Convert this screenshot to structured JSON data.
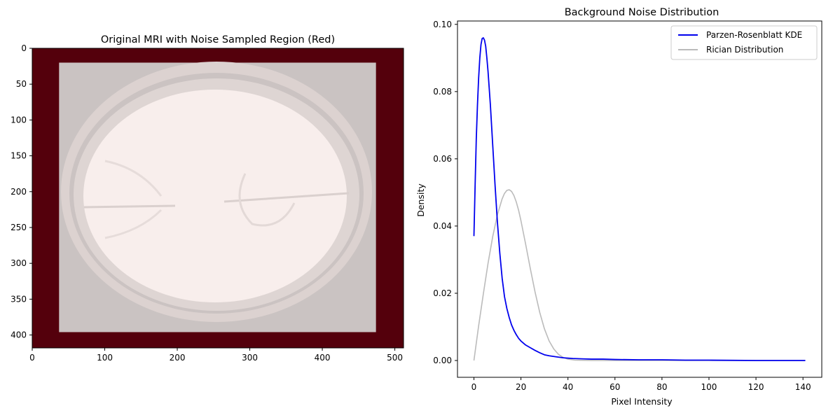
{
  "chart_data": [
    {
      "type": "image",
      "title": "Original MRI with Noise Sampled Region (Red)",
      "xlim": [
        0,
        512
      ],
      "ylim": [
        418,
        0
      ],
      "xticks": [
        0,
        100,
        200,
        300,
        400,
        500
      ],
      "yticks": [
        0,
        50,
        100,
        150,
        200,
        250,
        300,
        350,
        400
      ],
      "sampled_region_color": "#54000c",
      "interior_color": "#cac3c2",
      "interior_box": {
        "x0": 37,
        "x1": 474,
        "y0": 20,
        "y1": 396
      },
      "brain_color": "#f8eeec"
    },
    {
      "type": "line",
      "title": "Background Noise Distribution",
      "xlabel": "Pixel Intensity",
      "ylabel": "Density",
      "xlim": [
        -7,
        148
      ],
      "ylim": [
        -0.005,
        0.101
      ],
      "xticks": [
        0,
        20,
        40,
        60,
        80,
        100,
        120,
        140
      ],
      "yticks": [
        0.0,
        0.02,
        0.04,
        0.06,
        0.08,
        0.1
      ],
      "ytick_labels": [
        "0.00",
        "0.02",
        "0.04",
        "0.06",
        "0.08",
        "0.10"
      ],
      "legend": "top-right",
      "series": [
        {
          "name": "Parzen-Rosenblatt KDE",
          "color": "#0000ee",
          "points": [
            [
              0,
              0.037
            ],
            [
              0.5,
              0.052
            ],
            [
              1,
              0.066
            ],
            [
              1.5,
              0.076
            ],
            [
              2,
              0.084
            ],
            [
              2.5,
              0.09
            ],
            [
              3,
              0.094
            ],
            [
              3.5,
              0.0958
            ],
            [
              4,
              0.096
            ],
            [
              4.5,
              0.0953
            ],
            [
              5,
              0.0935
            ],
            [
              5.5,
              0.09
            ],
            [
              6,
              0.086
            ],
            [
              7,
              0.076
            ],
            [
              8,
              0.064
            ],
            [
              9,
              0.052
            ],
            [
              10,
              0.041
            ],
            [
              11,
              0.032
            ],
            [
              12,
              0.0245
            ],
            [
              13,
              0.019
            ],
            [
              14,
              0.0155
            ],
            [
              15,
              0.0128
            ],
            [
              16,
              0.0106
            ],
            [
              17,
              0.009
            ],
            [
              18,
              0.0077
            ],
            [
              19,
              0.0066
            ],
            [
              20,
              0.0058
            ],
            [
              22,
              0.0046
            ],
            [
              24,
              0.0038
            ],
            [
              26,
              0.003
            ],
            [
              28,
              0.0023
            ],
            [
              30,
              0.0017
            ],
            [
              32,
              0.0014
            ],
            [
              35,
              0.0011
            ],
            [
              38,
              0.0008
            ],
            [
              42,
              0.0006
            ],
            [
              46,
              0.0005
            ],
            [
              50,
              0.0004
            ],
            [
              55,
              0.0004
            ],
            [
              60,
              0.0003
            ],
            [
              70,
              0.0002
            ],
            [
              80,
              0.0002
            ],
            [
              90,
              0.0001
            ],
            [
              100,
              0.0001
            ],
            [
              120,
              0.0
            ],
            [
              141,
              0.0
            ]
          ]
        },
        {
          "name": "Rician Distribution",
          "color": "#bbbbbb",
          "points": [
            [
              0,
              0.0
            ],
            [
              2,
              0.0103
            ],
            [
              4,
              0.0198
            ],
            [
              6,
              0.0289
            ],
            [
              8,
              0.0369
            ],
            [
              10,
              0.0434
            ],
            [
              12,
              0.0481
            ],
            [
              13,
              0.0497
            ],
            [
              14,
              0.0506
            ],
            [
              15,
              0.0508
            ],
            [
              16,
              0.0503
            ],
            [
              17,
              0.0491
            ],
            [
              18,
              0.0472
            ],
            [
              19,
              0.0447
            ],
            [
              20,
              0.0416
            ],
            [
              22,
              0.0346
            ],
            [
              24,
              0.0273
            ],
            [
              26,
              0.0204
            ],
            [
              28,
              0.0143
            ],
            [
              30,
              0.0094
            ],
            [
              32,
              0.0058
            ],
            [
              34,
              0.0034
            ],
            [
              36,
              0.0018
            ],
            [
              38,
              0.0009
            ],
            [
              40,
              0.0004
            ],
            [
              43,
              0.0001
            ],
            [
              50,
              0.0
            ],
            [
              141,
              0.0
            ]
          ]
        }
      ]
    }
  ]
}
